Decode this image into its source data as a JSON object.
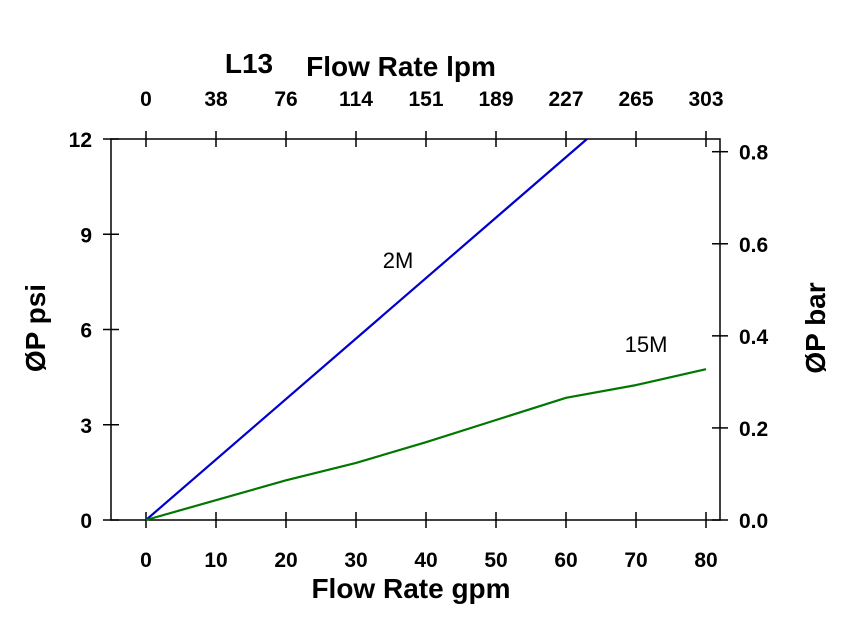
{
  "chart_data": {
    "type": "line",
    "title": "L13",
    "x_top_label": "Flow Rate lpm",
    "xlabel": "Flow Rate gpm",
    "ylabel_left": "ØP psi",
    "ylabel_right": "ØP bar",
    "xlim": [
      -5,
      82
    ],
    "ylim": [
      0,
      12
    ],
    "x_ticks": [
      "0",
      "10",
      "20",
      "30",
      "40",
      "50",
      "60",
      "70",
      "80"
    ],
    "x_tick_values": [
      0,
      10,
      20,
      30,
      40,
      50,
      60,
      70,
      80
    ],
    "x_top_ticks": [
      "0",
      "38",
      "76",
      "114",
      "151",
      "189",
      "227",
      "265",
      "303"
    ],
    "y_left_ticks": [
      "0",
      "3",
      "6",
      "9",
      "12"
    ],
    "y_left_tick_values": [
      0,
      3,
      6,
      9,
      12
    ],
    "y_right_ticks": [
      "0.0",
      "0.2",
      "0.4",
      "0.6",
      "0.8"
    ],
    "y_right_tick_values": [
      0,
      0.2,
      0.4,
      0.6,
      0.8
    ],
    "psi_per_bar": 14.5,
    "series": [
      {
        "name": "2M",
        "color": "#0000cc",
        "x": [
          0,
          63
        ],
        "y": [
          0,
          12
        ]
      },
      {
        "name": "15M",
        "color": "#007700",
        "x": [
          0,
          20,
          30,
          40,
          50,
          60,
          70,
          80
        ],
        "y": [
          0,
          1.25,
          1.8,
          2.45,
          3.15,
          3.85,
          4.25,
          4.75
        ]
      }
    ]
  }
}
